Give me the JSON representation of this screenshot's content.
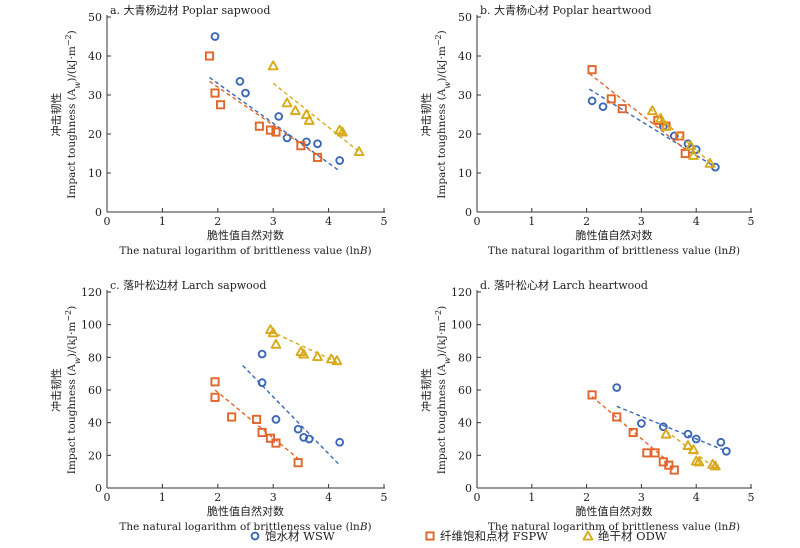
{
  "chart_data": [
    {
      "type": "scatter",
      "title": "a. 大青杨边材 Poplar sapwood",
      "xlabel_cn": "脆性值自然对数",
      "xlabel": "The natural logarithm of brittleness value (ln",
      "xlabel_var": "B",
      "xlabel_tail": ")",
      "ylabel_cn": "冲击韧性",
      "ylabel": "Impact toughness (A",
      "ylabel_sub": "w",
      "ylabel_tail": ")/(kJ·m",
      "ylabel_sup": "−2",
      "ylabel_end": ")",
      "xlim": [
        0,
        5
      ],
      "ylim": [
        0,
        50
      ],
      "xticks": [
        "0",
        "1",
        "2",
        "3",
        "4",
        "5"
      ],
      "yticks": [
        "0",
        "10",
        "20",
        "30",
        "40",
        "50"
      ],
      "series": [
        {
          "name": "饱水材 WSW",
          "x": [
            1.95,
            2.4,
            2.5,
            3.1,
            3.25,
            3.6,
            3.8,
            4.2
          ],
          "y": [
            45,
            33.5,
            30.5,
            24.5,
            19,
            18,
            17.5,
            13.2
          ],
          "trend": [
            [
              1.85,
              34.5
            ],
            [
              4.2,
              10.5
            ]
          ]
        },
        {
          "name": "纤维饱和点材 FSPW",
          "x": [
            1.85,
            1.95,
            2.05,
            2.75,
            2.95,
            3.05,
            3.5,
            3.8
          ],
          "y": [
            40,
            30.5,
            27.5,
            22,
            21,
            20.5,
            17,
            14
          ],
          "trend": [
            [
              1.85,
              33.5
            ],
            [
              3.9,
              13.5
            ]
          ]
        },
        {
          "name": "绝干材 ODW",
          "x": [
            3.0,
            3.25,
            3.4,
            3.6,
            3.65,
            4.2,
            4.25,
            4.55
          ],
          "y": [
            37.5,
            28,
            26,
            25,
            23.5,
            21,
            20.5,
            15.5
          ],
          "trend": [
            [
              3.0,
              33
            ],
            [
              4.55,
              15.5
            ]
          ]
        }
      ]
    },
    {
      "type": "scatter",
      "title": "b. 大青杨心材 Poplar heartwood",
      "xlabel_cn": "脆性值自然对数",
      "xlabel": "The natural logarithm of brittleness value (ln",
      "xlabel_var": "B",
      "xlabel_tail": ")",
      "ylabel_cn": "冲击韧性",
      "ylabel": "Impact toughness (A",
      "ylabel_sub": "w",
      "ylabel_tail": ")/(kJ·m",
      "ylabel_sup": "−2",
      "ylabel_end": ")",
      "xlim": [
        0,
        5
      ],
      "ylim": [
        0,
        50
      ],
      "xticks": [
        "0",
        "1",
        "2",
        "3",
        "4",
        "5"
      ],
      "yticks": [
        "0",
        "10",
        "20",
        "30",
        "40",
        "50"
      ],
      "series": [
        {
          "name": "饱水材 WSW",
          "x": [
            2.1,
            2.3,
            3.4,
            3.6,
            3.85,
            4.0,
            4.35
          ],
          "y": [
            28.5,
            27,
            22,
            19.5,
            17.5,
            16,
            11.5
          ],
          "trend": [
            [
              2.05,
              31.5
            ],
            [
              4.35,
              11.5
            ]
          ]
        },
        {
          "name": "纤维饱和点材 FSPW",
          "x": [
            2.1,
            2.45,
            2.65,
            3.3,
            3.45,
            3.7,
            3.8
          ],
          "y": [
            36.5,
            29,
            26.5,
            23.5,
            22,
            19.5,
            15
          ],
          "trend": [
            [
              2.05,
              35.5
            ],
            [
              3.9,
              15
            ]
          ]
        },
        {
          "name": "绝干材 ODW",
          "x": [
            3.2,
            3.35,
            3.45,
            3.9,
            3.95,
            4.25
          ],
          "y": [
            26,
            24,
            22,
            17,
            14.5,
            12.5
          ],
          "trend": [
            [
              3.15,
              26.5
            ],
            [
              4.35,
              11.5
            ]
          ]
        }
      ]
    },
    {
      "type": "scatter",
      "title": "c. 落叶松边材 Larch sapwood",
      "xlabel_cn": "脆性值自然对数",
      "xlabel": "The natural logarithm of brittleness value (ln",
      "xlabel_var": "B",
      "xlabel_tail": ")",
      "ylabel_cn": "冲击韧性",
      "ylabel": "Impact toughness (A",
      "ylabel_sub": "w",
      "ylabel_tail": ")/(kJ·m",
      "ylabel_sup": "−2",
      "ylabel_end": ")",
      "xlim": [
        0,
        5
      ],
      "ylim": [
        0,
        120
      ],
      "xticks": [
        "0",
        "1",
        "2",
        "3",
        "4",
        "5"
      ],
      "yticks": [
        "0",
        "20",
        "40",
        "60",
        "80",
        "100",
        "120"
      ],
      "series": [
        {
          "name": "饱水材 WSW",
          "x": [
            2.8,
            2.8,
            3.05,
            3.45,
            3.55,
            3.65,
            4.2
          ],
          "y": [
            82,
            64.5,
            42,
            36,
            31,
            30,
            28
          ],
          "trend": [
            [
              2.45,
              75
            ],
            [
              4.2,
              14
            ]
          ]
        },
        {
          "name": "纤维饱和点材 FSPW",
          "x": [
            1.95,
            1.95,
            2.25,
            2.7,
            2.8,
            2.95,
            3.05,
            3.45
          ],
          "y": [
            65,
            55.5,
            43.5,
            42,
            34,
            30.5,
            27.5,
            15.5
          ],
          "trend": [
            [
              1.95,
              60
            ],
            [
              3.45,
              18
            ]
          ]
        },
        {
          "name": "绝干材 ODW",
          "x": [
            2.95,
            3.0,
            3.05,
            3.5,
            3.55,
            3.8,
            4.05,
            4.15
          ],
          "y": [
            97,
            95,
            88,
            83.5,
            82,
            80.5,
            79,
            78
          ],
          "trend": [
            [
              2.95,
              96
            ],
            [
              4.15,
              77
            ]
          ]
        }
      ]
    },
    {
      "type": "scatter",
      "title": "d. 落叶松心材 Larch heartwood",
      "xlabel_cn": "脆性值自然对数",
      "xlabel": "The natural logarithm of brittleness value (ln",
      "xlabel_var": "B",
      "xlabel_tail": ")",
      "ylabel_cn": "冲击韧性",
      "ylabel": "Impact toughness (A",
      "ylabel_sub": "w",
      "ylabel_tail": ")/(kJ·m",
      "ylabel_sup": "−2",
      "ylabel_end": ")",
      "xlim": [
        0,
        5
      ],
      "ylim": [
        0,
        120
      ],
      "xticks": [
        "0",
        "1",
        "2",
        "3",
        "4",
        "5"
      ],
      "yticks": [
        "0",
        "20",
        "40",
        "60",
        "80",
        "100",
        "120"
      ],
      "series": [
        {
          "name": "饱水材 WSW",
          "x": [
            2.55,
            3.0,
            3.4,
            3.85,
            4.0,
            4.45,
            4.55
          ],
          "y": [
            61.5,
            39.5,
            37.5,
            33,
            30,
            28,
            22.5
          ],
          "trend": [
            [
              2.55,
              50
            ],
            [
              4.55,
              22.5
            ]
          ]
        },
        {
          "name": "纤维饱和点材 FSPW",
          "x": [
            2.1,
            2.55,
            2.85,
            3.1,
            3.25,
            3.4,
            3.5,
            3.6
          ],
          "y": [
            57,
            43.5,
            34,
            21.5,
            21.5,
            16,
            14,
            11
          ],
          "trend": [
            [
              2.1,
              56
            ],
            [
              3.6,
              13
            ]
          ]
        },
        {
          "name": "绝干材 ODW",
          "x": [
            3.45,
            3.85,
            3.95,
            4.0,
            4.05,
            4.3,
            4.35
          ],
          "y": [
            33,
            26,
            23.5,
            16.5,
            16,
            14.5,
            13.5
          ],
          "trend": [
            [
              3.45,
              35
            ],
            [
              4.35,
              12
            ]
          ]
        }
      ]
    }
  ],
  "legend": {
    "items": [
      {
        "label": "饱水材 WSW"
      },
      {
        "label": "纤维饱和点材 FSPW"
      },
      {
        "label": "绝干材 ODW"
      }
    ]
  },
  "colors": {
    "WSW": "#3a67b6",
    "FSPW": "#e0662b",
    "ODW": "#d8aa1c",
    "axis": "#333333"
  }
}
